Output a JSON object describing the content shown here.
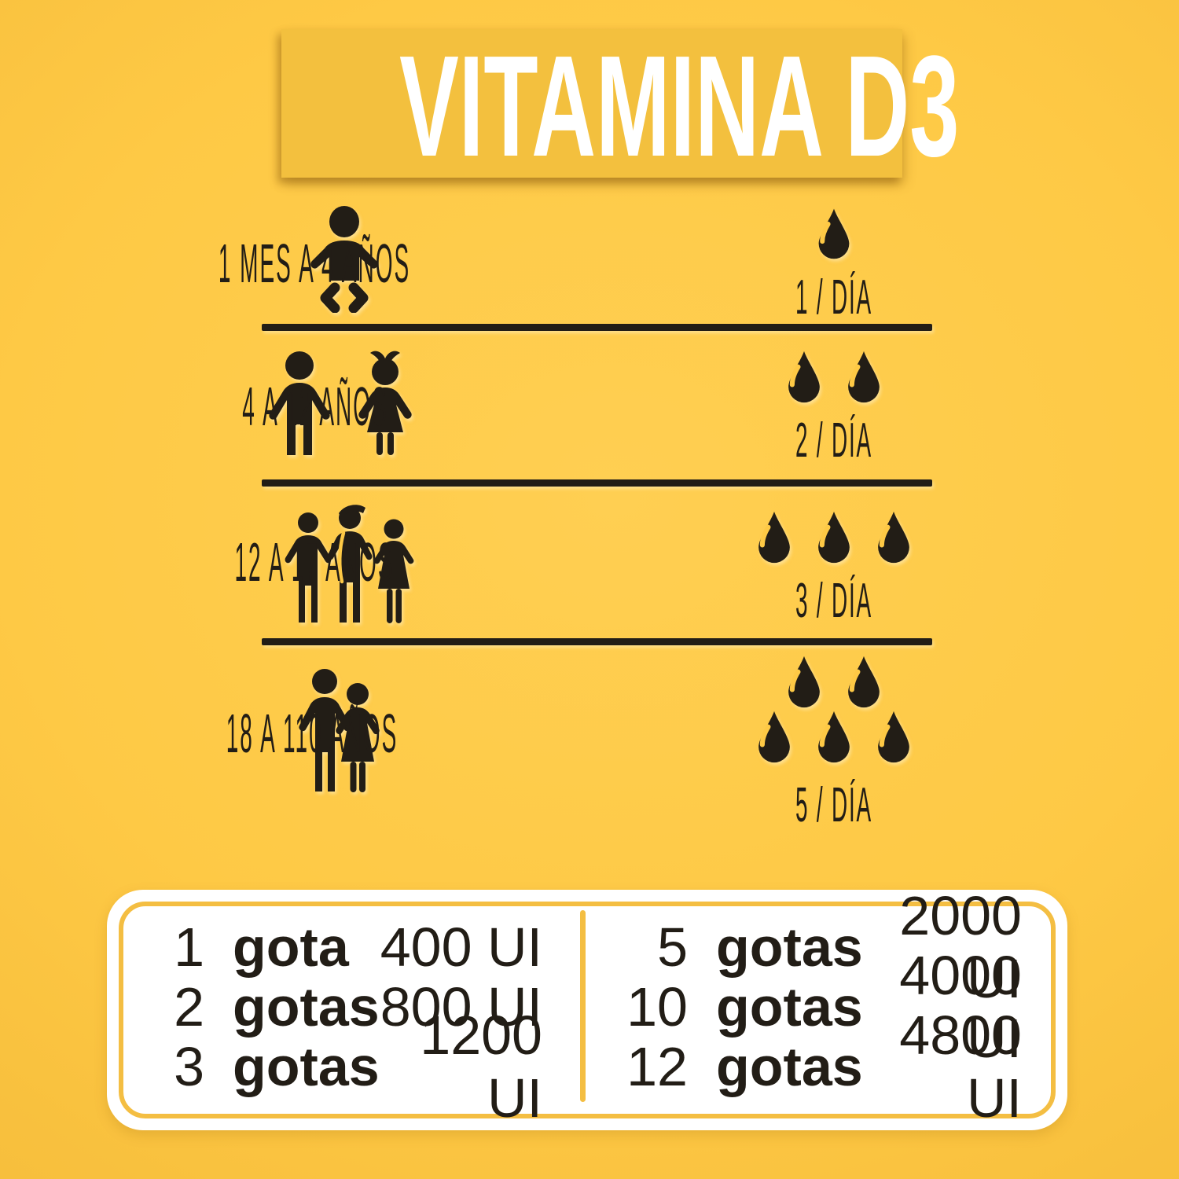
{
  "theme": {
    "bg": "#FEC945",
    "bg2": "#FFCF52",
    "bg3": "#F5BC3A",
    "banner": "#F3C03E",
    "ink": "#221D16",
    "gold": "#F4BE42",
    "paper": "#FFFFFF"
  },
  "title": {
    "text": "VITAMINA D3"
  },
  "rows": [
    {
      "icon": "baby-icon",
      "age": "1 MES A 4 AÑOS",
      "drops": 1,
      "dose": "1 / DÍA"
    },
    {
      "icon": "boy-girl-icon",
      "age": "4 A 12 AÑOS",
      "drops": 2,
      "dose": "2 / DÍA"
    },
    {
      "icon": "teenagers-icon",
      "age": "12 A 17 AÑOS",
      "drops": 3,
      "dose": "3 / DÍA"
    },
    {
      "icon": "adult-couple-icon",
      "age": "18 A 110 AÑOS",
      "drops": 5,
      "dose": "5 / DÍA"
    }
  ],
  "dosage_table": {
    "left": [
      {
        "count": "1",
        "unit": "gota",
        "value": "400 UI"
      },
      {
        "count": "2",
        "unit": "gotas",
        "value": "800 UI"
      },
      {
        "count": "3",
        "unit": "gotas",
        "value": "1200 UI"
      }
    ],
    "right": [
      {
        "count": "5",
        "unit": "gotas",
        "value": "2000 UI"
      },
      {
        "count": "10",
        "unit": "gotas",
        "value": "4000 UI"
      },
      {
        "count": "12",
        "unit": "gotas",
        "value": "4800 UI"
      }
    ]
  }
}
